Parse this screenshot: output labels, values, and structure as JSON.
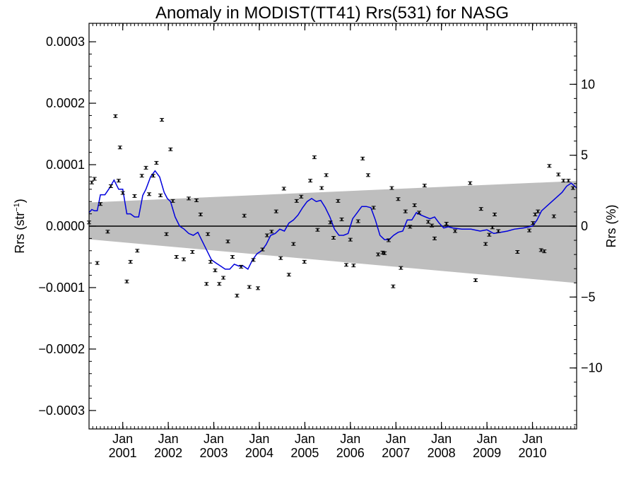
{
  "chart_data": {
    "type": "scatter",
    "title": "Anomaly in MODIST(TT41) Rrs(531) for NASG",
    "ylabel_left": {
      "base": "Rrs (str",
      "sup": "−1",
      "end": ")"
    },
    "ylabel_right": "Rrs (%)",
    "xlim": [
      2000.21,
      2010.92
    ],
    "ylim": [
      -0.00033,
      0.00033
    ],
    "ylim_right_percent": [
      -14.3,
      14.3
    ],
    "x_ticks": [
      {
        "x": 2000.95,
        "top": "Jan",
        "bottom": "2001"
      },
      {
        "x": 2001.95,
        "top": "Jan",
        "bottom": "2002"
      },
      {
        "x": 2002.95,
        "top": "Jan",
        "bottom": "2003"
      },
      {
        "x": 2003.95,
        "top": "Jan",
        "bottom": "2004"
      },
      {
        "x": 2004.95,
        "top": "Jan",
        "bottom": "2005"
      },
      {
        "x": 2005.95,
        "top": "Jan",
        "bottom": "2006"
      },
      {
        "x": 2006.95,
        "top": "Jan",
        "bottom": "2007"
      },
      {
        "x": 2007.95,
        "top": "Jan",
        "bottom": "2008"
      },
      {
        "x": 2008.95,
        "top": "Jan",
        "bottom": "2009"
      },
      {
        "x": 2009.95,
        "top": "Jan",
        "bottom": "2010"
      }
    ],
    "y_ticks_left": [
      {
        "value": 0.0003,
        "label": "0.0003"
      },
      {
        "value": 0.0002,
        "label": "0.0002"
      },
      {
        "value": 0.0001,
        "label": "0.0001"
      },
      {
        "value": 0.0,
        "label": "0.0000"
      },
      {
        "value": -0.0001,
        "label": "−0.0001"
      },
      {
        "value": -0.0002,
        "label": "−0.0002"
      },
      {
        "value": -0.0003,
        "label": "−0.0003"
      }
    ],
    "y_ticks_right": [
      {
        "value": 10,
        "label": "10"
      },
      {
        "value": 5,
        "label": "5"
      },
      {
        "value": 0,
        "label": "0"
      },
      {
        "value": -5,
        "label": "−5"
      },
      {
        "value": -10,
        "label": "−10"
      }
    ],
    "zero_line": 0,
    "uncertainty_band": {
      "color": "#bebebe",
      "upper": [
        [
          2000.21,
          3.85e-05
        ],
        [
          2010.92,
          7.35e-05
        ]
      ],
      "lower": [
        [
          2000.21,
          -2.15e-05
        ],
        [
          2010.92,
          -9.25e-05
        ]
      ]
    },
    "series": [
      {
        "kind": "points",
        "color": "#000000",
        "points": [
          [
            2000.21,
            6e-06
          ],
          [
            2000.27,
            7.1e-05
          ],
          [
            2000.33,
            7.7e-05
          ],
          [
            2000.39,
            -6e-05
          ],
          [
            2000.46,
            3.6e-05
          ],
          [
            2000.62,
            -9e-06
          ],
          [
            2000.69,
            6.5e-05
          ],
          [
            2000.79,
            0.000179
          ],
          [
            2000.86,
            7.4e-05
          ],
          [
            2000.89,
            0.000128
          ],
          [
            2000.95,
            5.4e-05
          ],
          [
            2001.04,
            -9e-05
          ],
          [
            2001.12,
            -5.8e-05
          ],
          [
            2001.21,
            4.9e-05
          ],
          [
            2001.27,
            -4e-05
          ],
          [
            2001.37,
            8.2e-05
          ],
          [
            2001.46,
            9.5e-05
          ],
          [
            2001.53,
            5.2e-05
          ],
          [
            2001.62,
            8.2e-05
          ],
          [
            2001.69,
            0.000103
          ],
          [
            2001.78,
            5e-05
          ],
          [
            2001.81,
            0.000173
          ],
          [
            2001.91,
            -1.3e-05
          ],
          [
            2002.0,
            0.000125
          ],
          [
            2002.05,
            4.1e-05
          ],
          [
            2002.13,
            -5e-05
          ],
          [
            2002.29,
            -5.4e-05
          ],
          [
            2002.4,
            4.5e-05
          ],
          [
            2002.48,
            -4.2e-05
          ],
          [
            2002.57,
            4.2e-05
          ],
          [
            2002.66,
            1.9e-05
          ],
          [
            2002.79,
            -9.4e-05
          ],
          [
            2002.82,
            -1.3e-05
          ],
          [
            2002.88,
            -5.8e-05
          ],
          [
            2002.98,
            -7.2e-05
          ],
          [
            2003.07,
            -9.4e-05
          ],
          [
            2003.16,
            -8.4e-05
          ],
          [
            2003.26,
            -2.5e-05
          ],
          [
            2003.36,
            -5e-05
          ],
          [
            2003.46,
            -0.000113
          ],
          [
            2003.55,
            -6.6e-05
          ],
          [
            2003.62,
            1.7e-05
          ],
          [
            2003.73,
            -9.9e-05
          ],
          [
            2003.82,
            -5.5e-05
          ],
          [
            2003.92,
            -0.000101
          ],
          [
            2004.02,
            -3.8e-05
          ],
          [
            2004.12,
            -1.5e-05
          ],
          [
            2004.22,
            -9e-06
          ],
          [
            2004.32,
            2.4e-05
          ],
          [
            2004.42,
            -5.2e-05
          ],
          [
            2004.49,
            6.1e-05
          ],
          [
            2004.6,
            -7.9e-05
          ],
          [
            2004.7,
            -2.9e-05
          ],
          [
            2004.77,
            4.1e-05
          ],
          [
            2004.87,
            4.8e-05
          ],
          [
            2004.94,
            -5.8e-05
          ],
          [
            2005.07,
            7.4e-05
          ],
          [
            2005.16,
            0.000112
          ],
          [
            2005.23,
            -6e-06
          ],
          [
            2005.32,
            6.2e-05
          ],
          [
            2005.42,
            8.3e-05
          ],
          [
            2005.51,
            6e-06
          ],
          [
            2005.58,
            -1.9e-05
          ],
          [
            2005.68,
            4.1e-05
          ],
          [
            2005.76,
            1.1e-05
          ],
          [
            2005.86,
            -6.3e-05
          ],
          [
            2005.95,
            -2.2e-05
          ],
          [
            2006.02,
            -6.4e-05
          ],
          [
            2006.12,
            8e-06
          ],
          [
            2006.22,
            0.00011
          ],
          [
            2006.34,
            8.3e-05
          ],
          [
            2006.46,
            3e-05
          ],
          [
            2006.56,
            -4.6e-05
          ],
          [
            2006.66,
            -4.3e-05
          ],
          [
            2006.7,
            -4.4e-05
          ],
          [
            2006.79,
            -2.3e-05
          ],
          [
            2006.86,
            6.2e-05
          ],
          [
            2006.89,
            -9.8e-05
          ],
          [
            2007.0,
            4.4e-05
          ],
          [
            2007.06,
            -6.8e-05
          ],
          [
            2007.16,
            2.4e-05
          ],
          [
            2007.26,
            -1e-06
          ],
          [
            2007.36,
            3.4e-05
          ],
          [
            2007.46,
            2.2e-05
          ],
          [
            2007.58,
            6.6e-05
          ],
          [
            2007.66,
            7e-06
          ],
          [
            2007.74,
            1e-06
          ],
          [
            2007.8,
            -2e-05
          ],
          [
            2008.06,
            4e-06
          ],
          [
            2008.25,
            -8e-06
          ],
          [
            2008.58,
            7e-05
          ],
          [
            2008.7,
            -8.8e-05
          ],
          [
            2008.82,
            2.8e-05
          ],
          [
            2008.92,
            -2.9e-05
          ],
          [
            2009.0,
            -1.4e-05
          ],
          [
            2009.07,
            -2e-06
          ],
          [
            2009.12,
            1.9e-05
          ],
          [
            2009.2,
            -8e-06
          ],
          [
            2009.62,
            -4.2e-05
          ],
          [
            2009.88,
            -7e-06
          ],
          [
            2009.96,
            5e-06
          ],
          [
            2010.01,
            1.9e-05
          ],
          [
            2010.07,
            2.4e-05
          ],
          [
            2010.14,
            -3.9e-05
          ],
          [
            2010.21,
            -4.1e-05
          ],
          [
            2010.32,
            9.8e-05
          ],
          [
            2010.42,
            1.6e-05
          ],
          [
            2010.52,
            8.4e-05
          ],
          [
            2010.63,
            7.4e-05
          ],
          [
            2010.74,
            7.4e-05
          ],
          [
            2010.84,
            6.2e-05
          ]
        ]
      },
      {
        "kind": "line",
        "color": "#0000dd",
        "points": [
          [
            2000.21,
            2.2e-05
          ],
          [
            2000.27,
            2.7e-05
          ],
          [
            2000.33,
            2.5e-05
          ],
          [
            2000.39,
            2.5e-05
          ],
          [
            2000.46,
            5.1e-05
          ],
          [
            2000.56,
            5.1e-05
          ],
          [
            2000.66,
            6.2e-05
          ],
          [
            2000.76,
            7.5e-05
          ],
          [
            2000.86,
            6e-05
          ],
          [
            2000.95,
            6e-05
          ],
          [
            2001.04,
            2e-05
          ],
          [
            2001.12,
            2e-05
          ],
          [
            2001.21,
            1.5e-05
          ],
          [
            2001.3,
            1.5e-05
          ],
          [
            2001.39,
            5e-05
          ],
          [
            2001.46,
            6e-05
          ],
          [
            2001.56,
            8e-05
          ],
          [
            2001.66,
            9e-05
          ],
          [
            2001.76,
            8e-05
          ],
          [
            2001.86,
            5.5e-05
          ],
          [
            2001.93,
            4.5e-05
          ],
          [
            2002.0,
            4e-05
          ],
          [
            2002.1,
            1.5e-05
          ],
          [
            2002.2,
            0.0
          ],
          [
            2002.3,
            -5e-06
          ],
          [
            2002.4,
            -1.2e-05
          ],
          [
            2002.5,
            -1.5e-05
          ],
          [
            2002.6,
            -1e-05
          ],
          [
            2002.7,
            -2.5e-05
          ],
          [
            2002.8,
            -4e-05
          ],
          [
            2002.9,
            -5.5e-05
          ],
          [
            2003.0,
            -6e-05
          ],
          [
            2003.1,
            -6.5e-05
          ],
          [
            2003.2,
            -7e-05
          ],
          [
            2003.3,
            -7e-05
          ],
          [
            2003.4,
            -6.2e-05
          ],
          [
            2003.5,
            -6.5e-05
          ],
          [
            2003.6,
            -6.5e-05
          ],
          [
            2003.7,
            -7e-05
          ],
          [
            2003.8,
            -5.5e-05
          ],
          [
            2003.9,
            -4.5e-05
          ],
          [
            2004.0,
            -4e-05
          ],
          [
            2004.1,
            -3e-05
          ],
          [
            2004.2,
            -1.5e-05
          ],
          [
            2004.3,
            -1.2e-05
          ],
          [
            2004.4,
            -5e-06
          ],
          [
            2004.5,
            -8e-06
          ],
          [
            2004.6,
            5e-06
          ],
          [
            2004.7,
            1e-05
          ],
          [
            2004.8,
            1.8e-05
          ],
          [
            2004.9,
            3e-05
          ],
          [
            2005.0,
            4e-05
          ],
          [
            2005.1,
            4.5e-05
          ],
          [
            2005.2,
            4e-05
          ],
          [
            2005.3,
            4.2e-05
          ],
          [
            2005.4,
            3e-05
          ],
          [
            2005.5,
            1.5e-05
          ],
          [
            2005.6,
            -5e-06
          ],
          [
            2005.7,
            -1.5e-05
          ],
          [
            2005.8,
            -1.5e-05
          ],
          [
            2005.9,
            -1.2e-05
          ],
          [
            2006.0,
            1.2e-05
          ],
          [
            2006.1,
            2.2e-05
          ],
          [
            2006.2,
            3.2e-05
          ],
          [
            2006.3,
            3.2e-05
          ],
          [
            2006.4,
            3e-05
          ],
          [
            2006.5,
            1e-05
          ],
          [
            2006.6,
            -1.5e-05
          ],
          [
            2006.7,
            -2.2e-05
          ],
          [
            2006.8,
            -2.2e-05
          ],
          [
            2006.9,
            -1.5e-05
          ],
          [
            2007.0,
            -1e-05
          ],
          [
            2007.1,
            -8e-06
          ],
          [
            2007.2,
            1e-05
          ],
          [
            2007.3,
            1e-05
          ],
          [
            2007.4,
            2.2e-05
          ],
          [
            2007.5,
            1.8e-05
          ],
          [
            2007.6,
            1.5e-05
          ],
          [
            2007.7,
            1.2e-05
          ],
          [
            2007.8,
            1.5e-05
          ],
          [
            2007.9,
            5e-06
          ],
          [
            2008.0,
            -3e-06
          ],
          [
            2008.1,
            -1e-06
          ],
          [
            2008.2,
            -3e-06
          ],
          [
            2008.4,
            -5e-06
          ],
          [
            2008.6,
            -5e-06
          ],
          [
            2008.8,
            -8e-06
          ],
          [
            2008.95,
            -6e-06
          ],
          [
            2009.1,
            -1.2e-05
          ],
          [
            2009.25,
            -1e-05
          ],
          [
            2009.4,
            -8e-06
          ],
          [
            2009.55,
            -5e-06
          ],
          [
            2009.75,
            -3e-06
          ],
          [
            2009.95,
            0.0
          ],
          [
            2010.05,
            1e-05
          ],
          [
            2010.15,
            2.5e-05
          ],
          [
            2010.3,
            3.5e-05
          ],
          [
            2010.45,
            4.5e-05
          ],
          [
            2010.6,
            5.5e-05
          ],
          [
            2010.7,
            6.5e-05
          ],
          [
            2010.8,
            7e-05
          ],
          [
            2010.92,
            6.2e-05
          ]
        ]
      }
    ]
  }
}
